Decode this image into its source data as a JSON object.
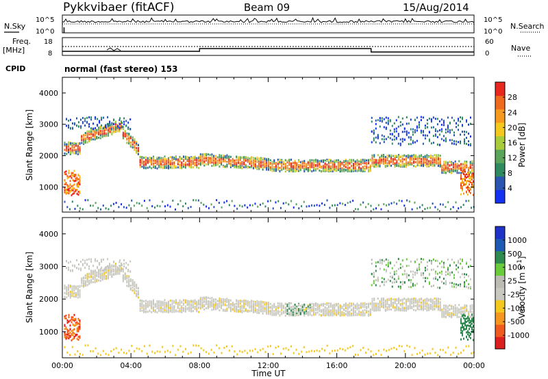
{
  "header": {
    "title": "Pykkvibaer (fitACF)",
    "beam": "Beam 09",
    "date": "15/Aug/2014"
  },
  "noise_panel": {
    "left_label": "N.Sky",
    "left_ticks": [
      "10^5",
      "10^0"
    ],
    "right_ticks": [
      "10^5",
      "10^0"
    ],
    "right_label": "N.Search"
  },
  "freq_panel": {
    "left_label_line1": "Freq.",
    "left_label_line2": "[MHz]",
    "left_ticks": [
      "18",
      "8"
    ],
    "right_ticks": [
      "60",
      "0"
    ],
    "right_label": "Nave"
  },
  "cpid": {
    "label": "CPID",
    "mode": "normal (fast stereo) 153"
  },
  "colors": {
    "power": [
      "#1430f0",
      "#2a55b0",
      "#2f8a60",
      "#5aa55a",
      "#a8cc3a",
      "#f5c81e",
      "#f59a1e",
      "#f06a1e",
      "#e8281e"
    ],
    "velocity": [
      "#dc1e1e",
      "#f05a1e",
      "#f5961e",
      "#f5c81e",
      "#c8c8c0",
      "#bcbcb4",
      "#6acc3a",
      "#2f8a50",
      "#1e5ab4",
      "#1e32c8"
    ]
  },
  "chart_data": [
    {
      "type": "heatmap",
      "title": "",
      "xlabel": "",
      "ylabel": "Slant Range [km]",
      "xlim": [
        "00:00",
        "00:00"
      ],
      "ylim": [
        200,
        4500
      ],
      "x_ticks": [
        "00:00",
        "04:00",
        "08:00",
        "12:00",
        "16:00",
        "20:00",
        "00:00"
      ],
      "y_ticks": [
        1000,
        2000,
        3000,
        4000
      ],
      "colorbar": {
        "label": "Power [dB]",
        "range": [
          0,
          32
        ],
        "ticks": [
          4,
          8,
          12,
          16,
          20,
          24,
          28
        ]
      }
    },
    {
      "type": "heatmap",
      "title": "",
      "xlabel": "Time UT",
      "ylabel": "Slant Range [km]",
      "xlim": [
        "00:00",
        "00:00"
      ],
      "ylim": [
        200,
        4500
      ],
      "x_ticks": [
        "00:00",
        "04:00",
        "08:00",
        "12:00",
        "16:00",
        "20:00",
        "00:00"
      ],
      "y_ticks": [
        1000,
        2000,
        3000,
        4000
      ],
      "colorbar": {
        "label": "Velocity [m s^-1]",
        "ticks": [
          "1000",
          "500",
          "100",
          "25",
          "-25",
          "-100",
          "-500",
          "-1000"
        ]
      }
    }
  ]
}
